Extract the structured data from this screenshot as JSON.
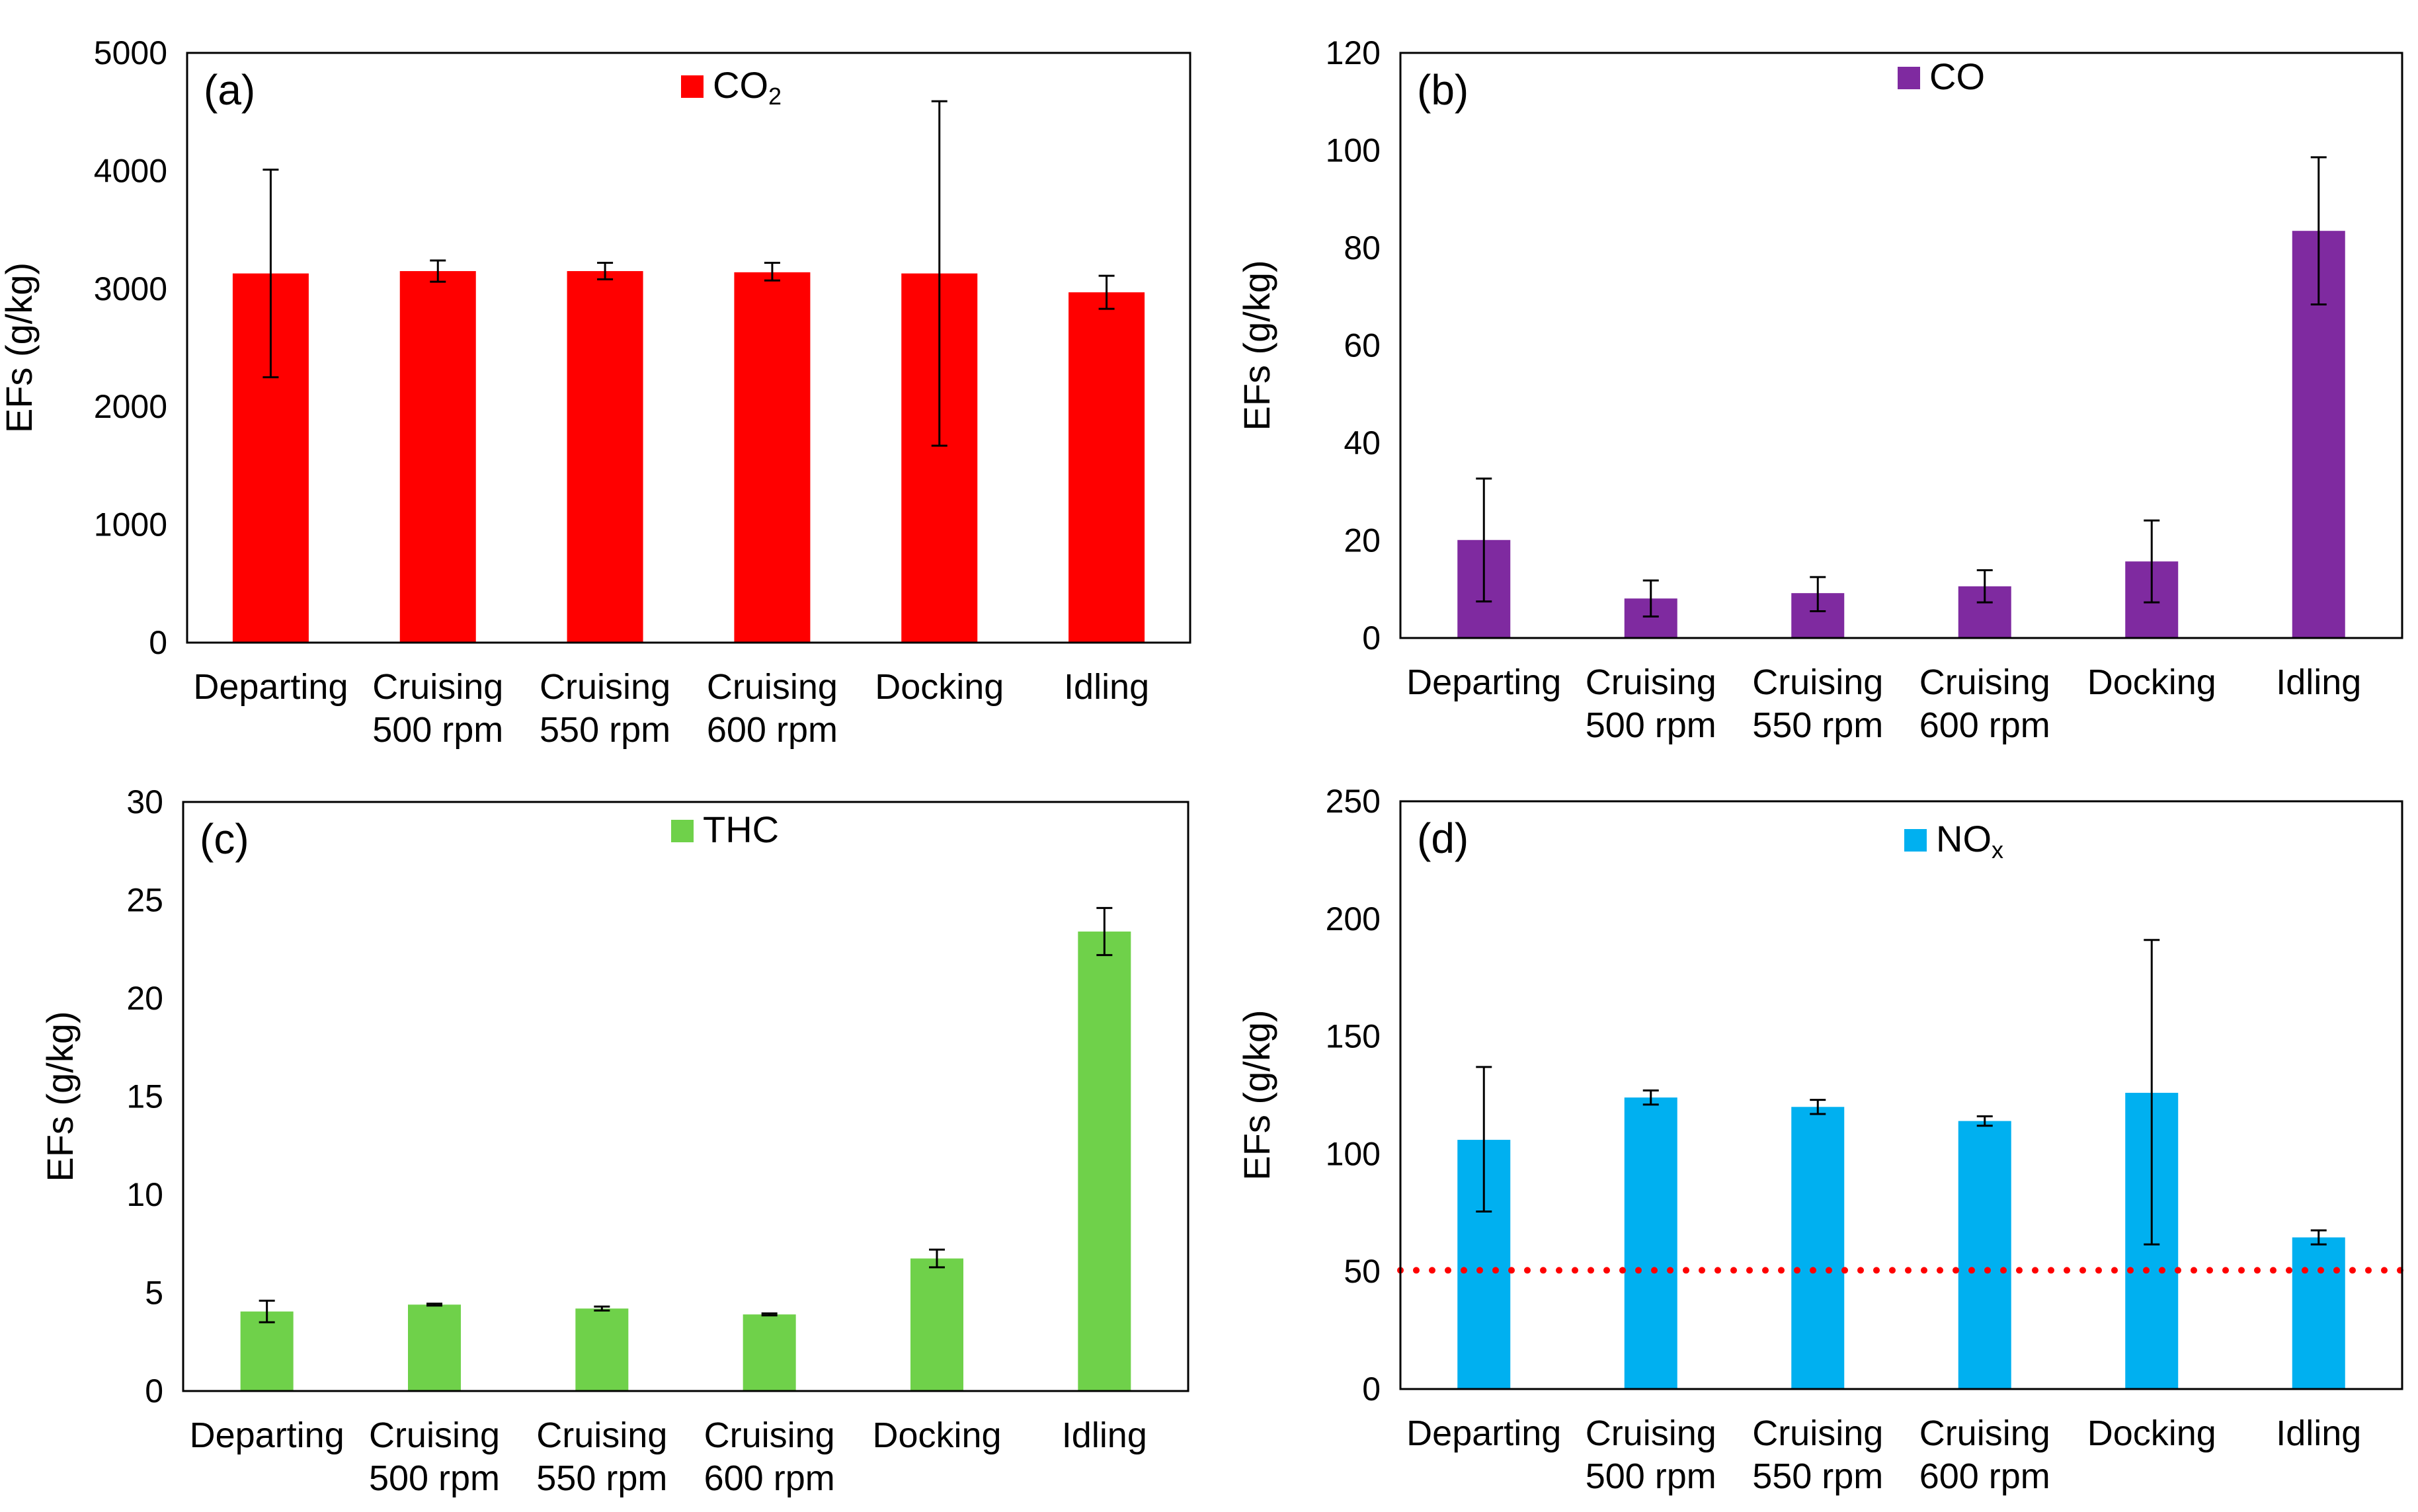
{
  "chart_data": [
    {
      "type": "bar",
      "panel_label": "(a)",
      "categories": [
        [
          "Departing"
        ],
        [
          "Cruising",
          "500 rpm"
        ],
        [
          "Cruising",
          "550 rpm"
        ],
        [
          "Cruising",
          "600 rpm"
        ],
        [
          "Docking"
        ],
        [
          "Idling"
        ]
      ],
      "series": [
        {
          "name": "CO2",
          "legend_main": "CO",
          "legend_sub": "2",
          "color": "#ff0000",
          "values": [
            3130,
            3150,
            3150,
            3140,
            3130,
            2970
          ],
          "error_low": [
            2250,
            3060,
            3080,
            3070,
            1670,
            2830
          ],
          "error_high": [
            4010,
            3240,
            3220,
            3220,
            4590,
            3110
          ]
        }
      ],
      "ylabel": "EFs (g/kg)",
      "ylim": [
        0,
        5000
      ],
      "yticks": [
        0,
        1000,
        2000,
        3000,
        4000,
        5000
      ],
      "legend_position": "top-center",
      "reference_line": null
    },
    {
      "type": "bar",
      "panel_label": "(b)",
      "categories": [
        [
          "Departing"
        ],
        [
          "Cruising",
          "500 rpm"
        ],
        [
          "Cruising",
          "550 rpm"
        ],
        [
          "Cruising",
          "600 rpm"
        ],
        [
          "Docking"
        ],
        [
          "Idling"
        ]
      ],
      "series": [
        {
          "name": "CO",
          "legend_main": "CO",
          "legend_sub": "",
          "color": "#7f2aa0",
          "values": [
            20.1,
            8.1,
            9.2,
            10.6,
            15.7,
            83.5
          ],
          "error_low": [
            7.5,
            4.4,
            5.5,
            7.3,
            7.3,
            68.4
          ],
          "error_high": [
            32.7,
            11.8,
            12.5,
            13.9,
            24.1,
            98.6
          ]
        }
      ],
      "ylabel": "EFs (g/kg)",
      "ylim": [
        0,
        120
      ],
      "yticks": [
        0,
        20,
        40,
        60,
        80,
        100,
        120
      ],
      "legend_position": "top-center",
      "reference_line": null
    },
    {
      "type": "bar",
      "panel_label": "(c)",
      "categories": [
        [
          "Departing"
        ],
        [
          "Cruising",
          "500 rpm"
        ],
        [
          "Cruising",
          "550 rpm"
        ],
        [
          "Cruising",
          "600 rpm"
        ],
        [
          "Docking"
        ],
        [
          "Idling"
        ]
      ],
      "series": [
        {
          "name": "THC",
          "legend_main": "THC",
          "legend_sub": "",
          "color": "#6fd14a",
          "values": [
            4.05,
            4.4,
            4.2,
            3.9,
            6.75,
            23.4
          ],
          "error_low": [
            3.5,
            4.35,
            4.1,
            3.85,
            6.3,
            22.2
          ],
          "error_high": [
            4.6,
            4.45,
            4.3,
            3.95,
            7.2,
            24.6
          ]
        }
      ],
      "ylabel": "EFs (g/kg)",
      "ylim": [
        0,
        30
      ],
      "yticks": [
        0,
        5,
        10,
        15,
        20,
        25,
        30
      ],
      "legend_position": "top-center",
      "reference_line": null
    },
    {
      "type": "bar",
      "panel_label": "(d)",
      "categories": [
        [
          "Departing"
        ],
        [
          "Cruising",
          "500 rpm"
        ],
        [
          "Cruising",
          "550 rpm"
        ],
        [
          "Cruising",
          "600 rpm"
        ],
        [
          "Docking"
        ],
        [
          "Idling"
        ]
      ],
      "series": [
        {
          "name": "NOx",
          "legend_main": "NO",
          "legend_sub": "x",
          "color": "#00b0f0",
          "values": [
            106,
            124,
            120,
            114,
            126,
            64.5
          ],
          "error_low": [
            75.5,
            121,
            117,
            112,
            61.5,
            61.5
          ],
          "error_high": [
            137,
            127,
            123,
            116,
            191,
            67.5
          ]
        }
      ],
      "ylabel": "EFs (g/kg)",
      "ylim": [
        0,
        250
      ],
      "yticks": [
        0,
        50,
        100,
        150,
        200,
        250
      ],
      "legend_position": "top-center",
      "reference_line": {
        "value": 50.5,
        "color": "#ff0000",
        "style": "dotted"
      }
    }
  ]
}
